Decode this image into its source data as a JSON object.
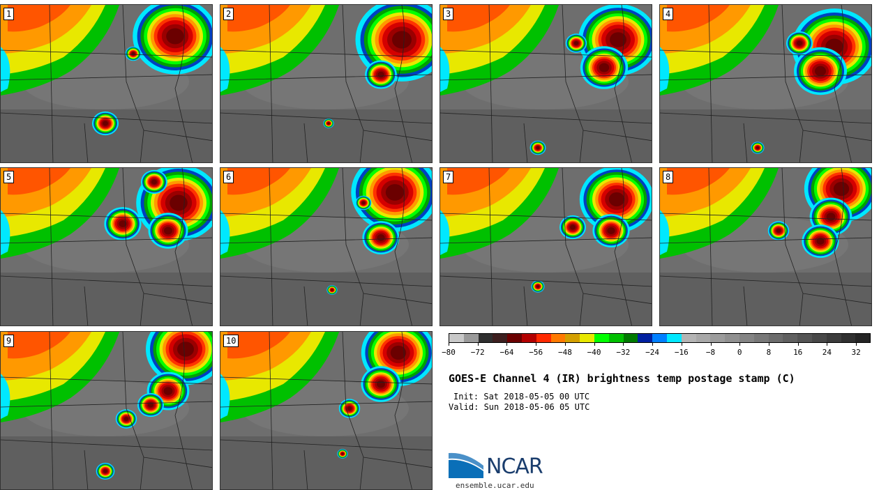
{
  "panels": [
    {
      "label": "1"
    },
    {
      "label": "2"
    },
    {
      "label": "3"
    },
    {
      "label": "4"
    },
    {
      "label": "5"
    },
    {
      "label": "6"
    },
    {
      "label": "7"
    },
    {
      "label": "8"
    },
    {
      "label": "9"
    },
    {
      "label": "10"
    }
  ],
  "colorbar": {
    "colors": [
      "#c8c8c8",
      "#9a9a9a",
      "#2f2f2f",
      "#3d1f1f",
      "#6b0000",
      "#b40000",
      "#ff2a00",
      "#ff7a00",
      "#d4a000",
      "#e8e800",
      "#00ff00",
      "#00c000",
      "#007a00",
      "#0020a0",
      "#0080ff",
      "#00e8ff",
      "#b4b4b4",
      "#a8a8a8",
      "#9c9c9c",
      "#909090",
      "#848484",
      "#787878",
      "#6c6c6c",
      "#606060",
      "#545454",
      "#484848",
      "#3c3c3c",
      "#303030",
      "#242424"
    ],
    "tick_labels": [
      "−80",
      "−72",
      "−64",
      "−56",
      "−48",
      "−40",
      "−32",
      "−24",
      "−16",
      "−8",
      "0",
      "8",
      "16",
      "24",
      "32"
    ]
  },
  "title": "GOES-E Channel 4 (IR) brightness temp postage stamp (C)",
  "init_text": "Init: Sat 2018-05-05 00 UTC",
  "valid_text": "Valid: Sun 2018-05-06 05 UTC",
  "logo": {
    "text": "NCAR",
    "url": "ensemble.ucar.edu"
  },
  "colors": {
    "cold_core": "#7a0000",
    "warm_ground": "#6b6b6b",
    "map_lines": "#222222"
  }
}
